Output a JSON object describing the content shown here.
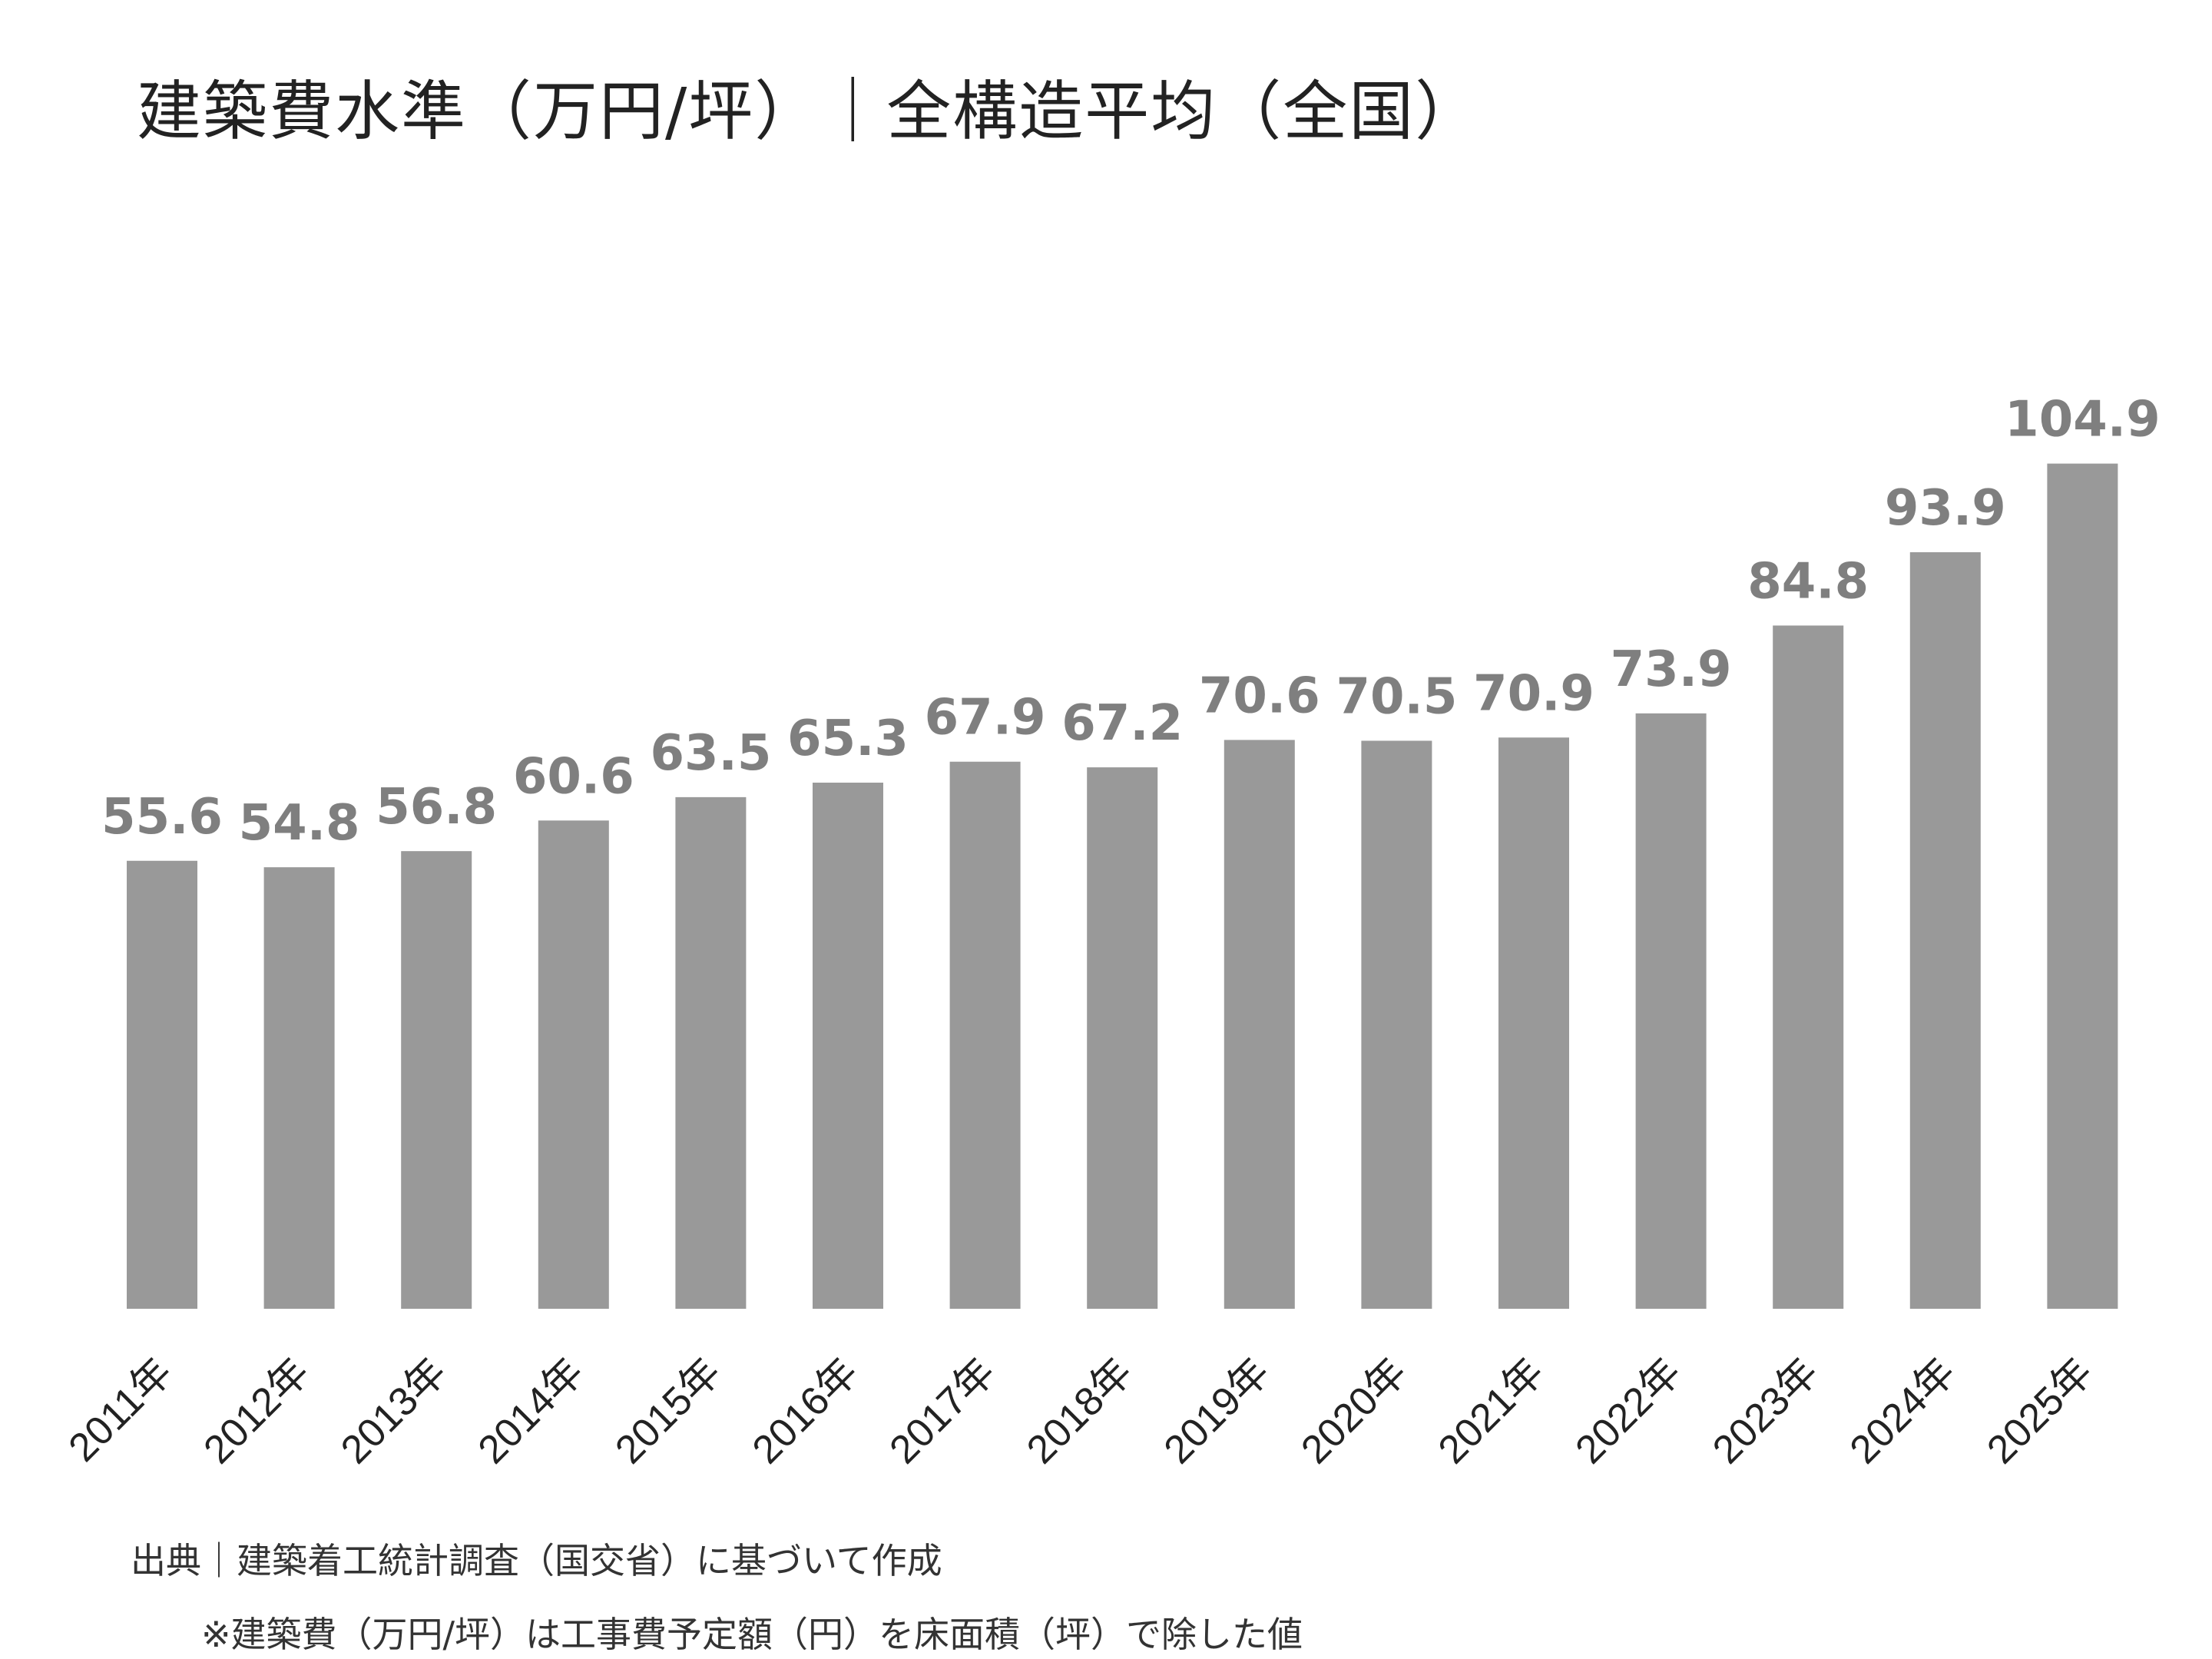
{
  "chart_data": {
    "type": "bar",
    "title": "建築費水準（万円/坪）｜全構造平均（全国）",
    "categories": [
      "2011年",
      "2012年",
      "2013年",
      "2014年",
      "2015年",
      "2016年",
      "2017年",
      "2018年",
      "2019年",
      "2020年",
      "2021年",
      "2022年",
      "2023年",
      "2024年",
      "2025年"
    ],
    "values": [
      55.6,
      54.8,
      56.8,
      60.6,
      63.5,
      65.3,
      67.9,
      67.2,
      70.6,
      70.5,
      70.9,
      73.9,
      84.8,
      93.9,
      104.9
    ],
    "value_labels": [
      "55.6",
      "54.8",
      "56.8",
      "60.6",
      "63.5",
      "65.3",
      "67.9",
      "67.2",
      "70.6",
      "70.5",
      "70.9",
      "73.9",
      "84.8",
      "93.9",
      "104.9"
    ],
    "xlabel": "",
    "ylabel": "",
    "ylim": [
      0,
      105
    ],
    "grid": false,
    "y_axis_visible": false,
    "data_labels": true,
    "bar_color": "#999999",
    "label_color": "#7f7f7f"
  },
  "notes": {
    "source": "出典｜建築着工統計調査（国交省）に基づいて作成",
    "footnote": "※建築費（万円/坪）は工事費予定額（円）を床面積（坪）で除した値"
  }
}
